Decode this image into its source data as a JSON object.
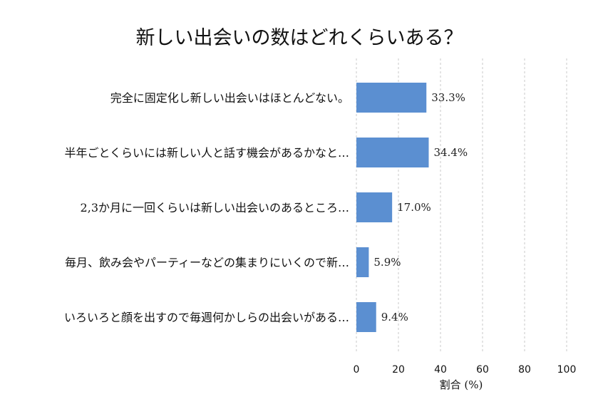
{
  "chart_data": {
    "type": "bar",
    "orientation": "horizontal",
    "title": "新しい出会いの数はどれくらいある？",
    "xlabel": "割合 (%)",
    "ylabel": "",
    "xlim": [
      0,
      100
    ],
    "xticks": [
      0,
      20,
      40,
      60,
      80,
      100
    ],
    "grid": "vertical dashed",
    "bar_color": "#5b8fd1",
    "categories": [
      "完全に固定化し新しい出会いはほとんどない。",
      "半年ごとくらいには新しい人と話す機会があるかなと…",
      "2,3か月に一回くらいは新しい出会いのあるところ…",
      "毎月、飲み会やパーティーなどの集まりにいくので新…",
      "いろいろと顔を出すので毎週何かしらの出会いがある…"
    ],
    "values": [
      33.3,
      34.4,
      17.0,
      5.9,
      9.4
    ],
    "value_labels": [
      "33.3%",
      "34.4%",
      "17.0%",
      "5.9%",
      "9.4%"
    ]
  }
}
